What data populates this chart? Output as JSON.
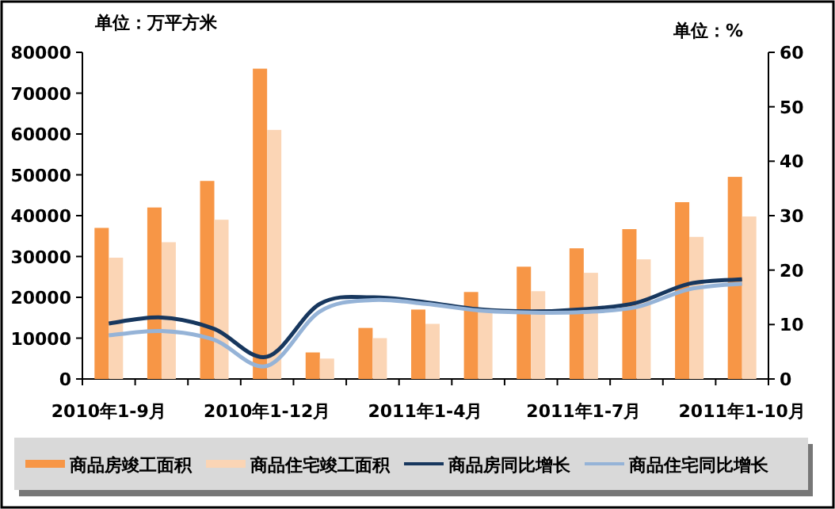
{
  "chart_data": {
    "type": "bar",
    "ylabel": "单位：万平方米",
    "y2label": "单位：%",
    "categories": [
      "2010年1-9月",
      null,
      null,
      "2010年1-12月",
      null,
      null,
      "2011年1-4月",
      null,
      null,
      "2011年1-7月",
      null,
      null,
      "2011年1-10月"
    ],
    "series": [
      {
        "name": "商品房竣工面积",
        "color": "#f79646",
        "values": [
          37000,
          42000,
          48500,
          76000,
          6500,
          12500,
          17000,
          21300,
          27500,
          32000,
          36700,
          43300,
          49500
        ]
      },
      {
        "name": "商品住宅竣工面积",
        "color": "#fbd5b5",
        "values": [
          29700,
          33500,
          39000,
          61000,
          5000,
          10000,
          13500,
          17000,
          21500,
          26000,
          29300,
          34800,
          39800
        ]
      },
      {
        "name": "商品房同比增长",
        "type": "line",
        "axis": "y2",
        "color": "#17375e",
        "values": [
          10.2,
          11.3,
          9.2,
          4.1,
          13.8,
          15.0,
          14.1,
          12.8,
          12.4,
          12.8,
          14.0,
          17.5,
          18.3
        ]
      },
      {
        "name": "商品住宅同比增长",
        "type": "line",
        "axis": "y2",
        "color": "#95b3d7",
        "values": [
          8.0,
          8.8,
          7.2,
          2.4,
          12.4,
          14.5,
          13.8,
          12.6,
          12.2,
          12.3,
          13.2,
          16.5,
          17.5
        ]
      }
    ],
    "ylim": [
      0,
      80000
    ],
    "yticks": [
      0,
      10000,
      20000,
      30000,
      40000,
      50000,
      60000,
      70000,
      80000
    ],
    "y2lim": [
      0,
      60
    ],
    "y2ticks": [
      0,
      10,
      20,
      30,
      40,
      50,
      60
    ],
    "grid": false,
    "legend": "bottom"
  }
}
